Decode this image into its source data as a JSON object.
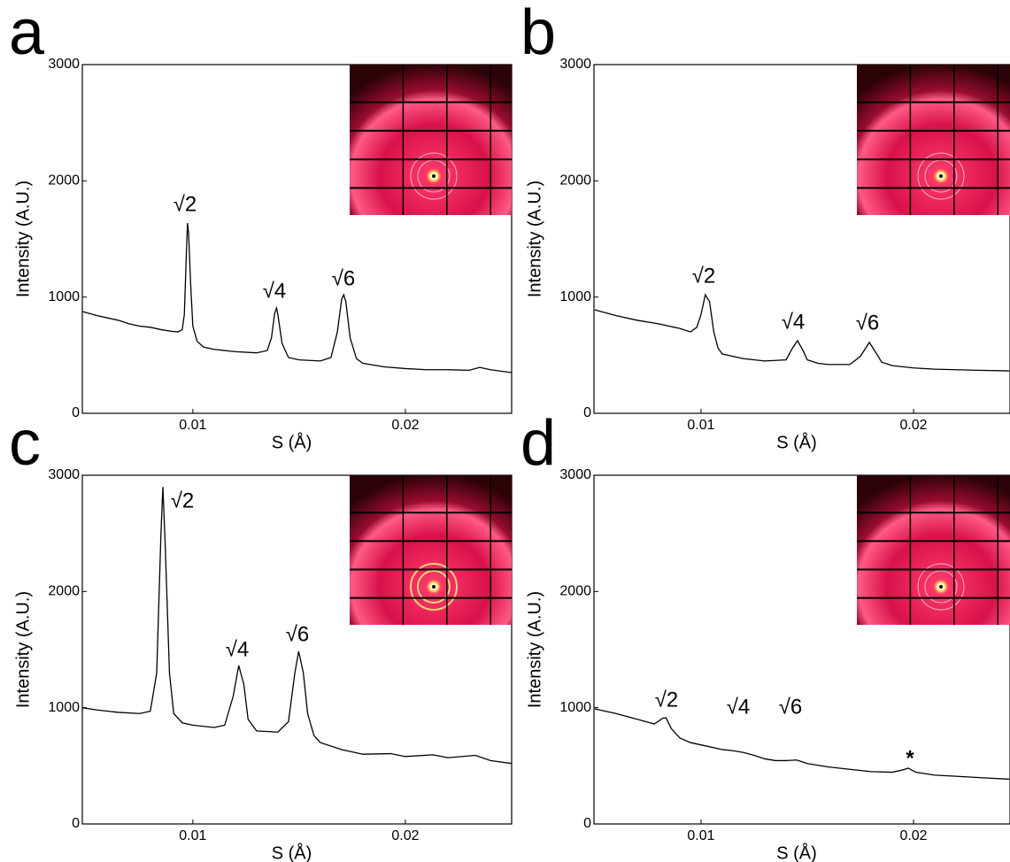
{
  "chart_data": [
    {
      "type": "line",
      "panel_label": "a",
      "xlabel": "S (Å)",
      "ylabel": "Intensity (A.U.)",
      "color": "#000000",
      "xlim": [
        0.0048,
        0.025
      ],
      "ylim": [
        0,
        3000
      ],
      "xticks": [
        0.01,
        0.02
      ],
      "yticks": [
        0,
        1000,
        2000,
        3000
      ],
      "x": [
        0.0048,
        0.0055,
        0.006,
        0.0065,
        0.007,
        0.0075,
        0.008,
        0.0085,
        0.009,
        0.0093,
        0.0095,
        0.0096,
        0.0097,
        0.00975,
        0.0098,
        0.0099,
        0.01,
        0.0102,
        0.0105,
        0.011,
        0.012,
        0.013,
        0.0135,
        0.0137,
        0.01385,
        0.01394,
        0.014,
        0.0142,
        0.0145,
        0.015,
        0.016,
        0.0165,
        0.0168,
        0.017,
        0.0171,
        0.0172,
        0.0174,
        0.0177,
        0.018,
        0.019,
        0.02,
        0.021,
        0.022,
        0.023,
        0.0235,
        0.024,
        0.025
      ],
      "values": [
        876,
        840,
        820,
        800,
        770,
        750,
        740,
        720,
        705,
        700,
        720,
        850,
        1400,
        1637,
        1550,
        1100,
        750,
        620,
        570,
        550,
        530,
        520,
        540,
        650,
        860,
        906,
        850,
        600,
        480,
        460,
        450,
        480,
        700,
        980,
        1020,
        960,
        650,
        470,
        430,
        400,
        385,
        375,
        375,
        370,
        395,
        375,
        350
      ],
      "annotations": [
        "√2",
        "√4",
        "√6"
      ]
    },
    {
      "type": "line",
      "panel_label": "b",
      "xlabel": "S (Å)",
      "ylabel": "Intensity (A.U.)",
      "color": "#000000",
      "xlim": [
        0.00496,
        0.02454
      ],
      "ylim": [
        0,
        3000
      ],
      "xticks": [
        0.01,
        0.02
      ],
      "yticks": [
        0,
        1000,
        2000,
        3000
      ],
      "x": [
        0.005,
        0.006,
        0.007,
        0.008,
        0.009,
        0.0095,
        0.0098,
        0.01,
        0.0102,
        0.0104,
        0.0106,
        0.0108,
        0.011,
        0.012,
        0.013,
        0.014,
        0.0143,
        0.01454,
        0.0148,
        0.015,
        0.0155,
        0.016,
        0.017,
        0.0175,
        0.01792,
        0.0182,
        0.0185,
        0.019,
        0.02,
        0.021,
        0.022,
        0.023,
        0.0245
      ],
      "values": [
        890,
        840,
        800,
        770,
        730,
        700,
        740,
        850,
        1020,
        960,
        700,
        560,
        510,
        470,
        450,
        460,
        560,
        625,
        540,
        460,
        430,
        420,
        420,
        490,
        610,
        530,
        440,
        410,
        390,
        380,
        375,
        370,
        365
      ],
      "annotations": [
        "√2",
        "√4",
        "√6"
      ]
    },
    {
      "type": "line",
      "panel_label": "c",
      "xlabel": "S (Å)",
      "ylabel": "Intensity (A.U.)",
      "color": "#000000",
      "xlim": [
        0.0048,
        0.025
      ],
      "ylim": [
        0,
        3000
      ],
      "xticks": [
        0.01,
        0.02
      ],
      "yticks": [
        0,
        1000,
        2000,
        3000
      ],
      "x": [
        0.0048,
        0.0055,
        0.0065,
        0.0075,
        0.008,
        0.0083,
        0.0085,
        0.00859,
        0.0087,
        0.0089,
        0.0091,
        0.0095,
        0.01,
        0.011,
        0.0115,
        0.0119,
        0.01216,
        0.0124,
        0.0126,
        0.013,
        0.014,
        0.0145,
        0.0148,
        0.01498,
        0.0152,
        0.0154,
        0.0157,
        0.016,
        0.017,
        0.018,
        0.0193,
        0.02,
        0.0213,
        0.022,
        0.0233,
        0.024,
        0.025
      ],
      "values": [
        1000,
        980,
        960,
        950,
        970,
        1300,
        2500,
        2900,
        2400,
        1300,
        950,
        870,
        850,
        830,
        850,
        1100,
        1363,
        1200,
        900,
        800,
        790,
        880,
        1300,
        1485,
        1300,
        950,
        760,
        700,
        640,
        600,
        605,
        580,
        595,
        570,
        590,
        545,
        520
      ],
      "annotations": [
        "√2",
        "√4",
        "√6"
      ]
    },
    {
      "type": "line",
      "panel_label": "d",
      "xlabel": "S (Å)",
      "ylabel": "Intensity (A.U.)",
      "color": "#000000",
      "xlim": [
        0.00496,
        0.02454
      ],
      "ylim": [
        0,
        3000
      ],
      "xticks": [
        0.01,
        0.02
      ],
      "yticks": [
        0,
        1000,
        2000,
        3000
      ],
      "x": [
        0.005,
        0.006,
        0.007,
        0.0078,
        0.0082,
        0.00835,
        0.0086,
        0.009,
        0.0095,
        0.01,
        0.011,
        0.0115,
        0.012,
        0.0125,
        0.013,
        0.0135,
        0.014,
        0.0145,
        0.015,
        0.016,
        0.017,
        0.018,
        0.019,
        0.0195,
        0.01975,
        0.0201,
        0.021,
        0.022,
        0.023,
        0.0245
      ],
      "values": [
        990,
        950,
        900,
        860,
        910,
        914,
        820,
        740,
        700,
        680,
        640,
        630,
        615,
        590,
        560,
        545,
        545,
        550,
        520,
        490,
        470,
        450,
        445,
        465,
        480,
        445,
        420,
        410,
        400,
        385
      ],
      "annotations": [
        "√2",
        "√4",
        "√6",
        "*"
      ]
    }
  ]
}
